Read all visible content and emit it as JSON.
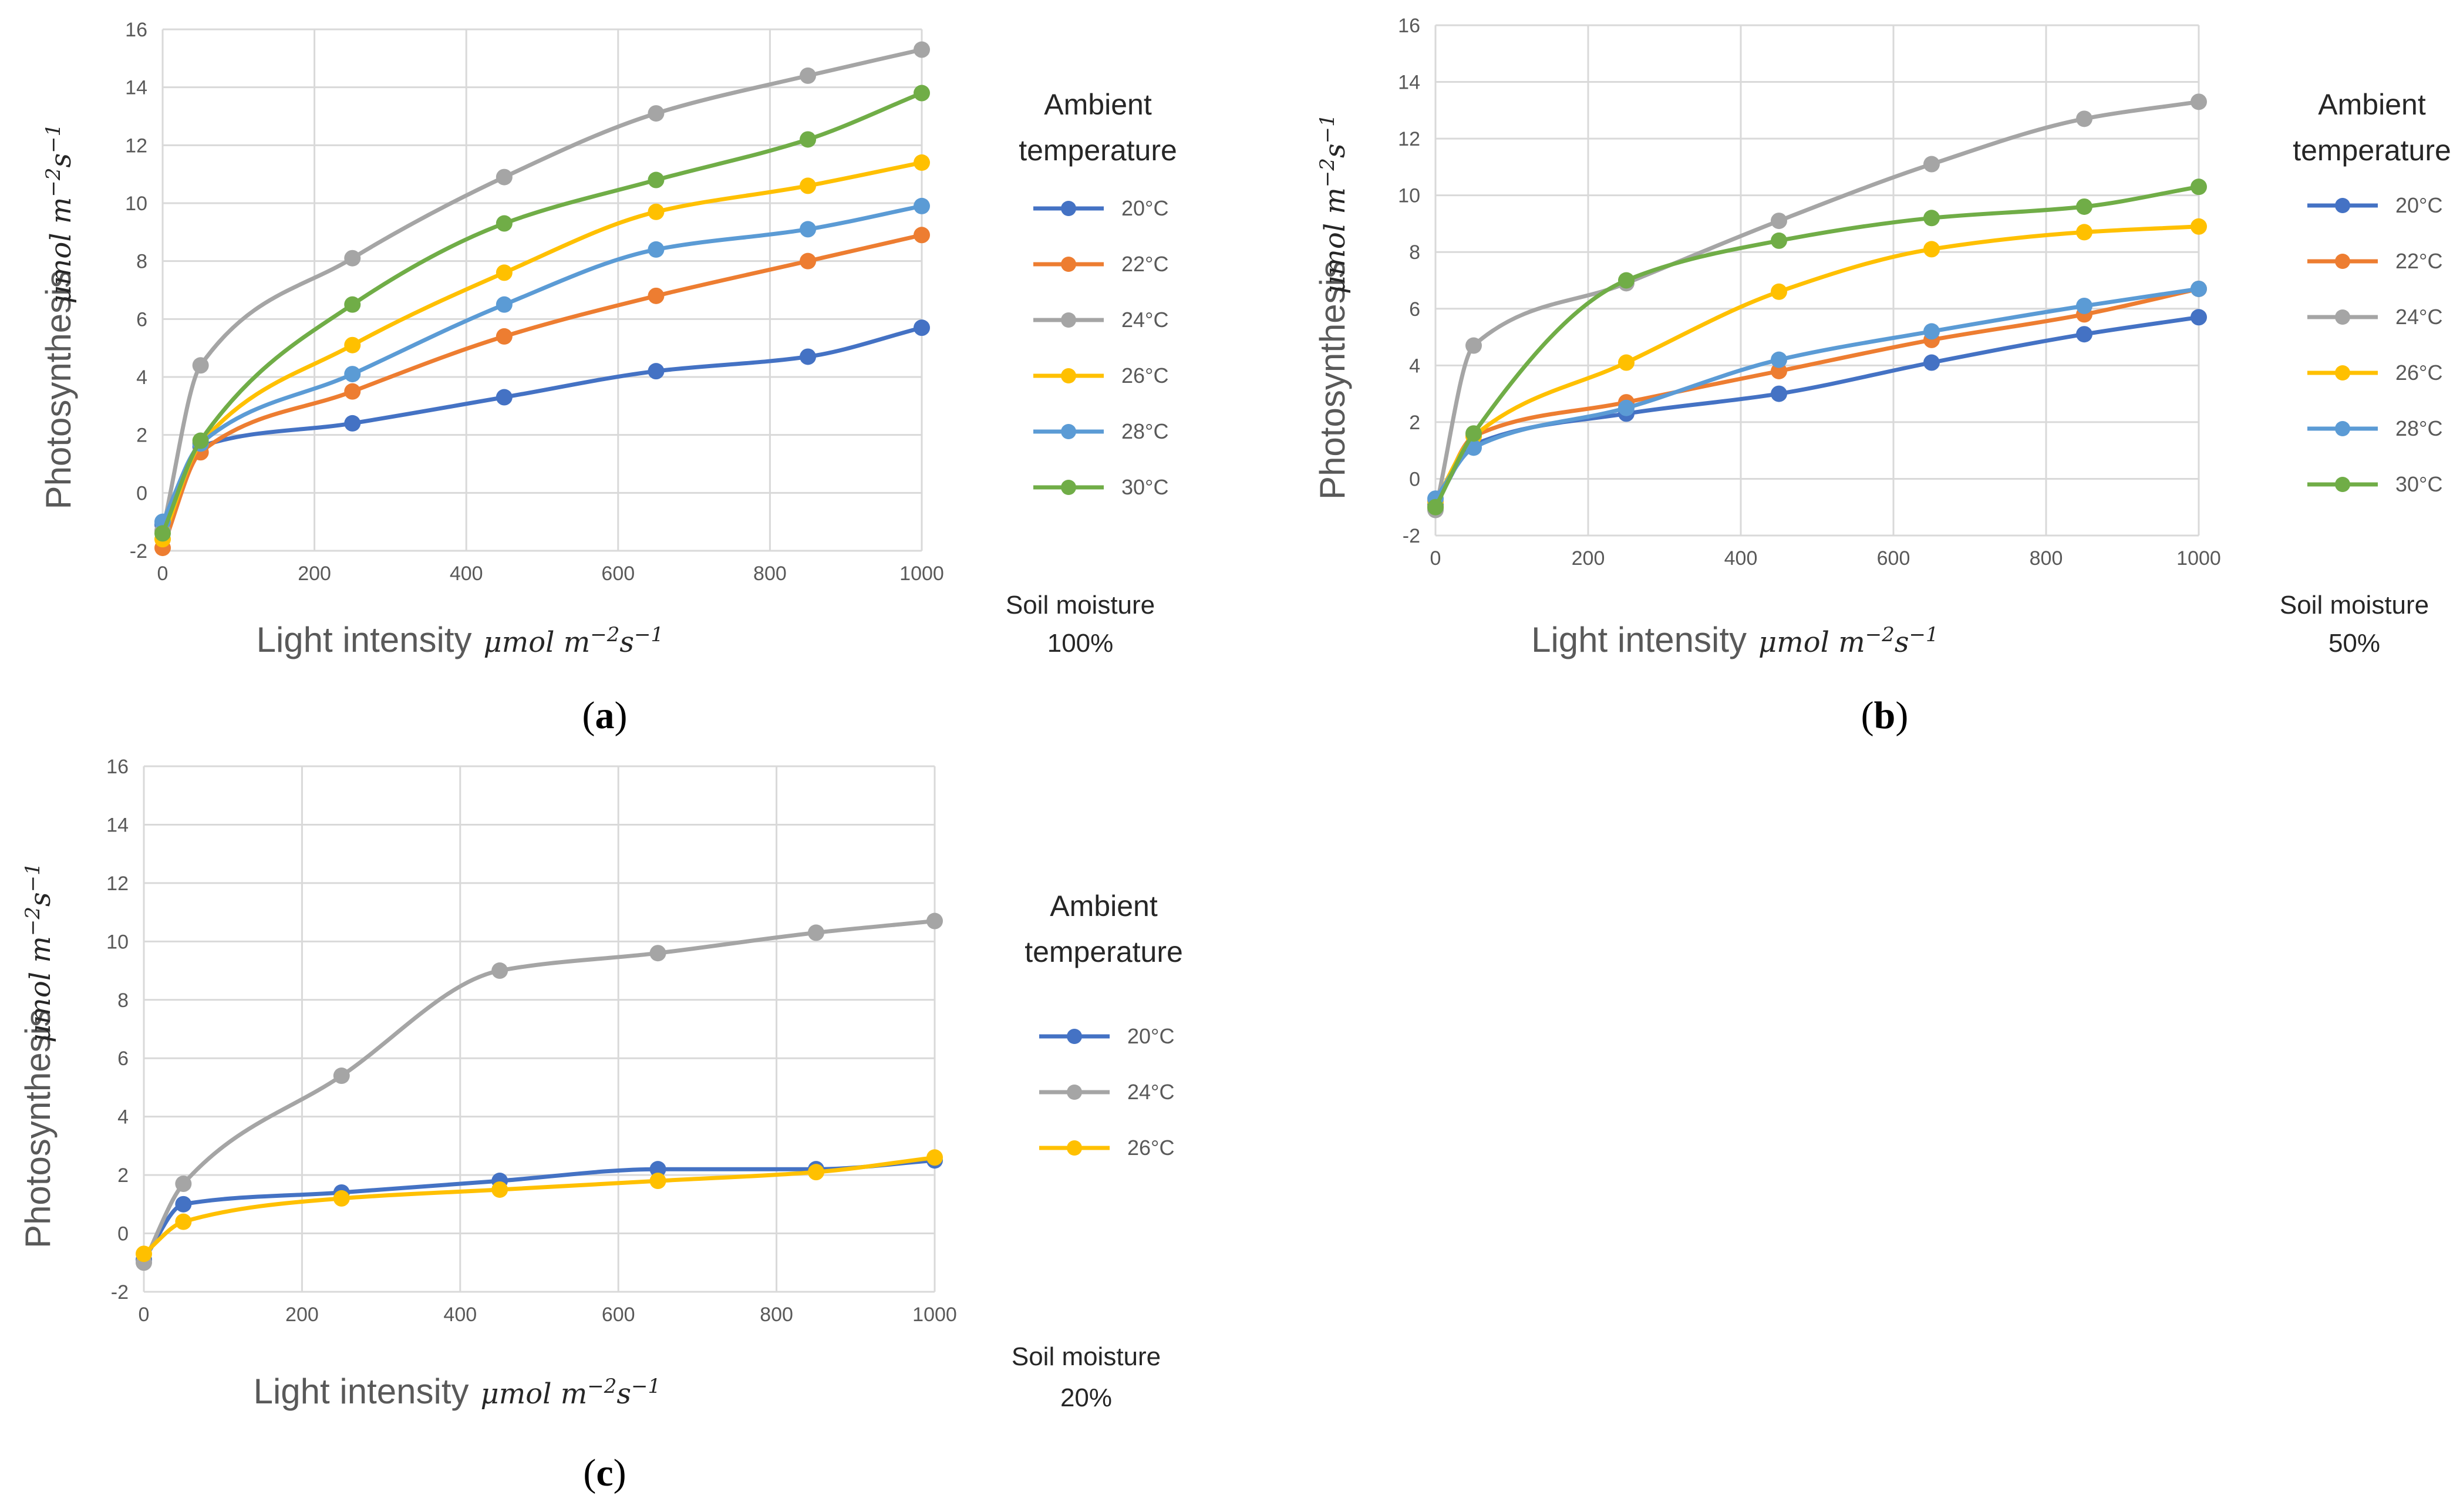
{
  "chart_data": [
    {
      "type": "line",
      "panel": "a",
      "xlabel": "Light intensity",
      "ylabel": "Photosynthesis",
      "unit": "μmol m⁻²s⁻¹",
      "xlim": [
        0,
        1000
      ],
      "ylim": [
        -2,
        16
      ],
      "xticks": [
        0,
        200,
        400,
        600,
        800,
        1000
      ],
      "yticks": [
        -2,
        0,
        2,
        4,
        6,
        8,
        10,
        12,
        14,
        16
      ],
      "grid": true,
      "legend_title": "Ambient temperature",
      "note_line1": "Soil moisture",
      "note_line2": "100%",
      "x": [
        0,
        50,
        250,
        450,
        650,
        850,
        1000
      ],
      "series": [
        {
          "name": "20°C",
          "color": "#4472C4",
          "values": [
            -1.1,
            1.6,
            2.4,
            3.3,
            4.2,
            4.7,
            5.7
          ]
        },
        {
          "name": "22°C",
          "color": "#ED7D31",
          "values": [
            -1.9,
            1.4,
            3.5,
            5.4,
            6.8,
            8.0,
            8.9
          ]
        },
        {
          "name": "24°C",
          "color": "#A5A5A5",
          "values": [
            -1.3,
            4.4,
            8.1,
            10.9,
            13.1,
            14.4,
            15.3
          ]
        },
        {
          "name": "26°C",
          "color": "#FFC000",
          "values": [
            -1.6,
            1.7,
            5.1,
            7.6,
            9.7,
            10.6,
            11.4
          ]
        },
        {
          "name": "28°C",
          "color": "#5B9BD5",
          "values": [
            -1.0,
            1.7,
            4.1,
            6.5,
            8.4,
            9.1,
            9.9
          ]
        },
        {
          "name": "30°C",
          "color": "#70AD47",
          "values": [
            -1.4,
            1.8,
            6.5,
            9.3,
            10.8,
            12.2,
            13.8
          ]
        }
      ]
    },
    {
      "type": "line",
      "panel": "b",
      "xlabel": "Light intensity",
      "ylabel": "Photosynthesis",
      "unit": "μmol m⁻²s⁻¹",
      "xlim": [
        0,
        1000
      ],
      "ylim": [
        -2,
        16
      ],
      "xticks": [
        0,
        200,
        400,
        600,
        800,
        1000
      ],
      "yticks": [
        -2,
        0,
        2,
        4,
        6,
        8,
        10,
        12,
        14,
        16
      ],
      "grid": true,
      "legend_title": "Ambient temperature",
      "note_line1": "Soil moisture",
      "note_line2": "50%",
      "x": [
        0,
        50,
        250,
        450,
        650,
        850,
        1000
      ],
      "series": [
        {
          "name": "20°C",
          "color": "#4472C4",
          "values": [
            -0.9,
            1.2,
            2.3,
            3.0,
            4.1,
            5.1,
            5.7
          ]
        },
        {
          "name": "22°C",
          "color": "#ED7D31",
          "values": [
            -1.0,
            1.5,
            2.7,
            3.8,
            4.9,
            5.8,
            6.7
          ]
        },
        {
          "name": "24°C",
          "color": "#A5A5A5",
          "values": [
            -1.1,
            4.7,
            6.9,
            9.1,
            11.1,
            12.7,
            13.3
          ]
        },
        {
          "name": "26°C",
          "color": "#FFC000",
          "values": [
            -0.8,
            1.5,
            4.1,
            6.6,
            8.1,
            8.7,
            8.9
          ]
        },
        {
          "name": "28°C",
          "color": "#5B9BD5",
          "values": [
            -0.7,
            1.1,
            2.5,
            4.2,
            5.2,
            6.1,
            6.7
          ]
        },
        {
          "name": "30°C",
          "color": "#70AD47",
          "values": [
            -1.0,
            1.6,
            7.0,
            8.4,
            9.2,
            9.6,
            10.3
          ]
        }
      ]
    },
    {
      "type": "line",
      "panel": "c",
      "xlabel": "Light intensity",
      "ylabel": "Photosynthesis",
      "unit": "μmol m⁻²s⁻¹",
      "xlim": [
        0,
        1000
      ],
      "ylim": [
        -2,
        16
      ],
      "xticks": [
        0,
        200,
        400,
        600,
        800,
        1000
      ],
      "yticks": [
        -2,
        0,
        2,
        4,
        6,
        8,
        10,
        12,
        14,
        16
      ],
      "grid": true,
      "legend_title": "Ambient temperature",
      "note_line1": "Soil moisture",
      "note_line2": "20%",
      "x": [
        0,
        50,
        250,
        450,
        650,
        850,
        1000
      ],
      "series": [
        {
          "name": "20°C",
          "color": "#4472C4",
          "values": [
            -0.9,
            1.0,
            1.4,
            1.8,
            2.2,
            2.2,
            2.5
          ]
        },
        {
          "name": "24°C",
          "color": "#A5A5A5",
          "values": [
            -1.0,
            1.7,
            5.4,
            9.0,
            9.6,
            10.3,
            10.7
          ]
        },
        {
          "name": "26°C",
          "color": "#FFC000",
          "values": [
            -0.7,
            0.4,
            1.2,
            1.5,
            1.8,
            2.1,
            2.6
          ]
        }
      ]
    }
  ]
}
